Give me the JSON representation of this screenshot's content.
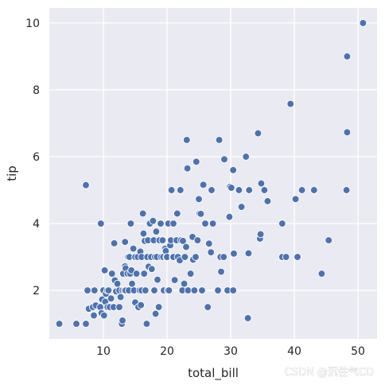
{
  "chart_data": {
    "type": "scatter",
    "title": "",
    "xlabel": "total_bill",
    "ylabel": "tip",
    "xlim": [
      1.5,
      53
    ],
    "ylim": [
      0.55,
      10.45
    ],
    "xticks": [
      10,
      20,
      30,
      40,
      50
    ],
    "yticks": [
      2,
      4,
      6,
      8,
      10
    ],
    "grid": true,
    "background": "#eaeaf2",
    "grid_color": "#ffffff",
    "marker_color": "#4c72b0",
    "marker_edge": "#ffffff",
    "points": [
      [
        3.07,
        1.0
      ],
      [
        5.75,
        1.0
      ],
      [
        7.25,
        1.0
      ],
      [
        7.25,
        5.15
      ],
      [
        7.5,
        2.0
      ],
      [
        7.7,
        1.45
      ],
      [
        8.35,
        1.5
      ],
      [
        8.5,
        1.25
      ],
      [
        8.6,
        2.0
      ],
      [
        8.8,
        1.55
      ],
      [
        9.5,
        1.5
      ],
      [
        9.6,
        4.0
      ],
      [
        9.7,
        1.32
      ],
      [
        9.8,
        1.73
      ],
      [
        10.0,
        2.0
      ],
      [
        10.1,
        1.25
      ],
      [
        10.2,
        2.6
      ],
      [
        10.3,
        1.66
      ],
      [
        10.4,
        1.9
      ],
      [
        10.6,
        2.0
      ],
      [
        10.65,
        1.5
      ],
      [
        10.8,
        2.0
      ],
      [
        11.0,
        1.5
      ],
      [
        11.2,
        1.76
      ],
      [
        11.35,
        2.5
      ],
      [
        11.6,
        1.5
      ],
      [
        11.7,
        3.41
      ],
      [
        11.8,
        2.3
      ],
      [
        12.0,
        1.97
      ],
      [
        12.2,
        2.2
      ],
      [
        12.5,
        2.0
      ],
      [
        12.5,
        1.5
      ],
      [
        12.7,
        1.8
      ],
      [
        12.9,
        1.0
      ],
      [
        13.0,
        1.1
      ],
      [
        13.0,
        2.0
      ],
      [
        13.1,
        2.5
      ],
      [
        13.3,
        2.0
      ],
      [
        13.4,
        3.45
      ],
      [
        13.4,
        2.72
      ],
      [
        13.5,
        2.66
      ],
      [
        13.5,
        2.0
      ],
      [
        13.8,
        2.5
      ],
      [
        13.9,
        3.0
      ],
      [
        14.0,
        2.0
      ],
      [
        14.1,
        3.0
      ],
      [
        14.2,
        2.5
      ],
      [
        14.3,
        4.0
      ],
      [
        14.4,
        2.6
      ],
      [
        14.5,
        2.2
      ],
      [
        14.7,
        3.25
      ],
      [
        14.8,
        2.0
      ],
      [
        15.0,
        1.64
      ],
      [
        15.0,
        3.0
      ],
      [
        15.2,
        2.5
      ],
      [
        15.4,
        3.0
      ],
      [
        15.5,
        1.5
      ],
      [
        15.7,
        2.0
      ],
      [
        15.8,
        3.16
      ],
      [
        15.9,
        1.56
      ],
      [
        16.0,
        3.0
      ],
      [
        16.0,
        2.0
      ],
      [
        16.2,
        4.3
      ],
      [
        16.3,
        3.7
      ],
      [
        16.4,
        2.5
      ],
      [
        16.5,
        3.48
      ],
      [
        16.6,
        2.0
      ],
      [
        16.8,
        1.0
      ],
      [
        16.9,
        3.0
      ],
      [
        17.0,
        3.5
      ],
      [
        17.1,
        2.71
      ],
      [
        17.3,
        4.0
      ],
      [
        17.5,
        3.0
      ],
      [
        17.6,
        2.64
      ],
      [
        17.8,
        4.08
      ],
      [
        17.9,
        3.5
      ],
      [
        18.0,
        2.0
      ],
      [
        18.1,
        3.0
      ],
      [
        18.2,
        1.3
      ],
      [
        18.3,
        3.76
      ],
      [
        18.4,
        3.0
      ],
      [
        18.5,
        2.32
      ],
      [
        18.7,
        1.5
      ],
      [
        18.8,
        3.5
      ],
      [
        19.0,
        4.0
      ],
      [
        19.1,
        3.0
      ],
      [
        19.3,
        3.5
      ],
      [
        19.4,
        3.0
      ],
      [
        19.5,
        2.0
      ],
      [
        19.7,
        3.25
      ],
      [
        19.8,
        3.18
      ],
      [
        19.9,
        3.0
      ],
      [
        20.0,
        3.0
      ],
      [
        20.1,
        2.0
      ],
      [
        20.2,
        4.0
      ],
      [
        20.3,
        2.0
      ],
      [
        20.5,
        3.35
      ],
      [
        20.6,
        3.5
      ],
      [
        20.7,
        5.0
      ],
      [
        20.9,
        3.0
      ],
      [
        21.0,
        4.0
      ],
      [
        21.0,
        3.0
      ],
      [
        21.2,
        2.31
      ],
      [
        21.5,
        3.5
      ],
      [
        21.6,
        4.3
      ],
      [
        21.7,
        3.0
      ],
      [
        22.0,
        2.9
      ],
      [
        22.1,
        5.0
      ],
      [
        22.2,
        3.5
      ],
      [
        22.4,
        2.0
      ],
      [
        22.5,
        3.48
      ],
      [
        22.7,
        2.2
      ],
      [
        22.8,
        3.0
      ],
      [
        23.0,
        3.3
      ],
      [
        23.1,
        6.5
      ],
      [
        23.2,
        5.65
      ],
      [
        23.3,
        2.0
      ],
      [
        23.7,
        2.5
      ],
      [
        24.0,
        3.6
      ],
      [
        24.1,
        2.92
      ],
      [
        24.3,
        2.0
      ],
      [
        24.5,
        3.0
      ],
      [
        24.6,
        5.85
      ],
      [
        24.8,
        3.5
      ],
      [
        25.0,
        4.73
      ],
      [
        25.1,
        4.3
      ],
      [
        25.3,
        4.29
      ],
      [
        25.5,
        2.0
      ],
      [
        25.7,
        5.16
      ],
      [
        26.0,
        4.0
      ],
      [
        26.4,
        1.5
      ],
      [
        26.6,
        3.4
      ],
      [
        26.9,
        3.14
      ],
      [
        27.0,
        5.0
      ],
      [
        27.2,
        4.0
      ],
      [
        28.0,
        2.0
      ],
      [
        28.2,
        6.5
      ],
      [
        28.4,
        3.0
      ],
      [
        28.5,
        2.56
      ],
      [
        28.9,
        3.0
      ],
      [
        29.0,
        5.92
      ],
      [
        29.5,
        2.0
      ],
      [
        29.8,
        4.2
      ],
      [
        29.9,
        5.1
      ],
      [
        30.1,
        5.07
      ],
      [
        30.4,
        2.0
      ],
      [
        30.4,
        5.6
      ],
      [
        30.5,
        3.1
      ],
      [
        31.3,
        5.0
      ],
      [
        31.7,
        4.5
      ],
      [
        32.4,
        6.0
      ],
      [
        32.7,
        1.17
      ],
      [
        32.8,
        3.11
      ],
      [
        32.8,
        5.0
      ],
      [
        32.9,
        5.0
      ],
      [
        34.3,
        6.7
      ],
      [
        34.6,
        3.55
      ],
      [
        34.7,
        3.68
      ],
      [
        34.8,
        5.2
      ],
      [
        35.3,
        5.0
      ],
      [
        35.8,
        4.67
      ],
      [
        38.1,
        4.0
      ],
      [
        38.1,
        3.0
      ],
      [
        38.7,
        3.0
      ],
      [
        39.4,
        7.58
      ],
      [
        40.2,
        4.73
      ],
      [
        40.5,
        3.0
      ],
      [
        41.2,
        5.0
      ],
      [
        43.1,
        5.0
      ],
      [
        44.3,
        2.5
      ],
      [
        45.4,
        3.5
      ],
      [
        48.2,
        5.0
      ],
      [
        48.3,
        6.73
      ],
      [
        48.3,
        9.0
      ],
      [
        50.8,
        10.0
      ]
    ]
  },
  "watermark": "CSDN @沉住气CD"
}
